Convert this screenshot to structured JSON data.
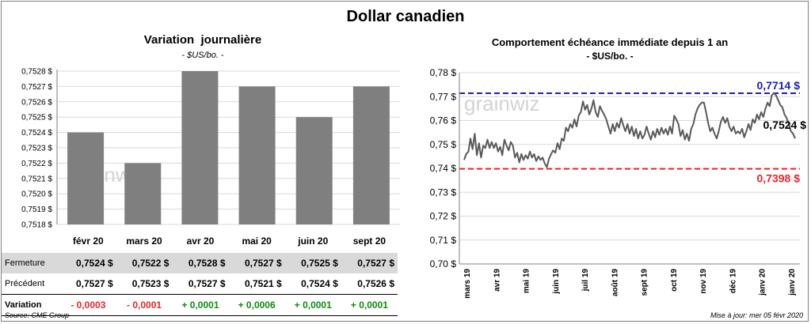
{
  "title": "Dollar canadien",
  "left_panel": {
    "title": "Variation  journalière",
    "subtitle": "- $US/bo. -"
  },
  "right_panel": {
    "title": "Comportement échéance immédiate depuis 1 an",
    "subtitle": "- $US/bo. -"
  },
  "watermark": "grainwiz",
  "table": {
    "columns": [
      "févr 20",
      "mars 20",
      "avr 20",
      "mai 20",
      "juin 20",
      "sept 20"
    ],
    "rows": [
      {
        "label": "Fermeture",
        "cells": [
          "0,7524  $",
          "0,7522  $",
          "0,7528  $",
          "0,7527  $",
          "0,7525  $",
          "0,7527  $"
        ]
      },
      {
        "label": "Précédent",
        "cells": [
          "0,7527  $",
          "0,7523  $",
          "0,7527  $",
          "0,7521  $",
          "0,7524  $",
          "0,7526  $"
        ]
      },
      {
        "label": "Variation",
        "cells": [
          "- 0,0003",
          "- 0,0001",
          "+ 0,0001",
          "+ 0,0006",
          "+ 0,0001",
          "+ 0,0001"
        ]
      }
    ]
  },
  "footer": {
    "source": "Source: CME Group",
    "updated": "Mise à jour: mer 05 févr 2020"
  },
  "colors": {
    "bar": "#7f7f7f",
    "line": "#595959",
    "high_line": "#1f1fb4",
    "low_line": "#e8262a",
    "negative": "#e8262a",
    "positive": "#108a10"
  },
  "chart_data": [
    {
      "type": "bar",
      "categories": [
        "févr 20",
        "mars 20",
        "avr 20",
        "mai 20",
        "juin 20",
        "sept 20"
      ],
      "values": [
        0.7524,
        0.7522,
        0.7528,
        0.7527,
        0.7525,
        0.7527
      ],
      "ylim": [
        0.7518,
        0.7528
      ],
      "yticks": [
        "0,7518 $",
        "0,7519 $",
        "0,7520 $",
        "0,7521 $",
        "0,7522 $",
        "0,7523 $",
        "0,7524 $",
        "0,7525 $",
        "0,7526 $",
        "0,7527 $",
        "0,7528 $"
      ],
      "grid": true
    },
    {
      "type": "line",
      "ylim": [
        0.7,
        0.78
      ],
      "yticks": [
        "0,70 $",
        "0,71 $",
        "0,72 $",
        "0,73 $",
        "0,74 $",
        "0,75 $",
        "0,76 $",
        "0,77 $",
        "0,78 $"
      ],
      "xticks": [
        "mars 19",
        "avr 19",
        "mai 19",
        "juin 19",
        "juil 19",
        "août 19",
        "sept 19",
        "oct 19",
        "nov 19",
        "déc 19",
        "janv 20",
        "janv 20"
      ],
      "grid": true,
      "reference_lines": [
        {
          "value": 0.7714,
          "label": "0,7714 $",
          "color": "#1f1fb4"
        },
        {
          "value": 0.7398,
          "label": "0,7398 $",
          "color": "#e8262a"
        }
      ],
      "last_label": "0,7524 $",
      "series": [
        {
          "values": [
            0.7435,
            0.746,
            0.747,
            0.7525,
            0.748,
            0.7545,
            0.7455,
            0.7505,
            0.7445,
            0.7495,
            0.7485,
            0.752,
            0.7485,
            0.751,
            0.7485,
            0.7505,
            0.747,
            0.749,
            0.7455,
            0.752,
            0.7495,
            0.7475,
            0.751,
            0.7495,
            0.7445,
            0.7465,
            0.7425,
            0.746,
            0.7435,
            0.7455,
            0.744,
            0.747,
            0.7445,
            0.746,
            0.743,
            0.745,
            0.7435,
            0.7445,
            0.742,
            0.7405,
            0.744,
            0.746,
            0.7475,
            0.7465,
            0.7505,
            0.748,
            0.7525,
            0.7515,
            0.757,
            0.7555,
            0.7585,
            0.757,
            0.7605,
            0.7575,
            0.762,
            0.7635,
            0.768,
            0.7645,
            0.7665,
            0.7625,
            0.765,
            0.7685,
            0.7635,
            0.7615,
            0.766,
            0.764,
            0.7625,
            0.7605,
            0.7575,
            0.7545,
            0.7585,
            0.7555,
            0.759,
            0.757,
            0.761,
            0.758,
            0.7555,
            0.7585,
            0.7545,
            0.7575,
            0.7535,
            0.7565,
            0.7525,
            0.7555,
            0.7525,
            0.754,
            0.7575,
            0.7545,
            0.752,
            0.7555,
            0.753,
            0.7565,
            0.754,
            0.757,
            0.7545,
            0.7565,
            0.754,
            0.7575,
            0.7545,
            0.762,
            0.7605,
            0.7585,
            0.7535,
            0.756,
            0.752,
            0.7545,
            0.7515,
            0.7565,
            0.7585,
            0.7625,
            0.765,
            0.7665,
            0.7675,
            0.7675,
            0.7635,
            0.759,
            0.7555,
            0.757,
            0.7545,
            0.7525,
            0.7555,
            0.7595,
            0.7615,
            0.759,
            0.761,
            0.7575,
            0.7555,
            0.7575,
            0.7545,
            0.7555,
            0.7545,
            0.7565,
            0.753,
            0.7555,
            0.7585,
            0.756,
            0.7605,
            0.759,
            0.7625,
            0.7605,
            0.7635,
            0.7615,
            0.765,
            0.7675,
            0.766,
            0.7705,
            0.7715,
            0.7705,
            0.7685,
            0.7665,
            0.7655,
            0.7625,
            0.761,
            0.7585,
            0.7555,
            0.7545,
            0.7525
          ]
        }
      ]
    }
  ]
}
